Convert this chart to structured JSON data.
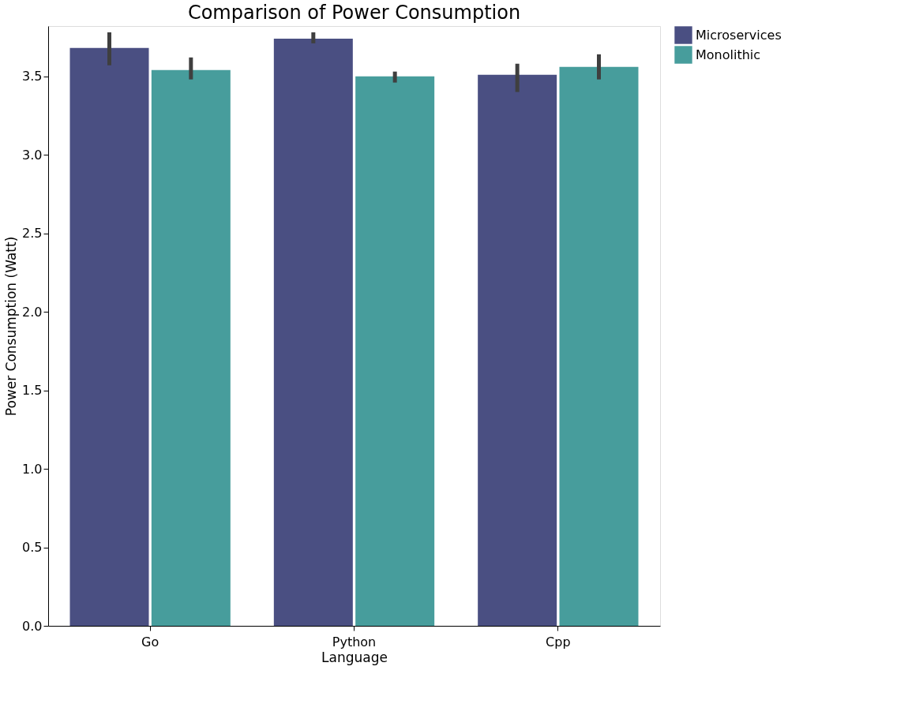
{
  "chart_data": {
    "type": "bar",
    "title": "Comparison of Power Consumption",
    "xlabel": "Language",
    "ylabel": "Power Consumption (Watt)",
    "categories": [
      "Go",
      "Python",
      "Cpp"
    ],
    "series": [
      {
        "name": "Microservices",
        "color": "#4a4f82",
        "values": [
          3.68,
          3.74,
          3.51
        ],
        "errors": [
          [
            3.57,
            3.78
          ],
          [
            3.71,
            3.78
          ],
          [
            3.4,
            3.58
          ]
        ]
      },
      {
        "name": "Monolithic",
        "color": "#479d9c",
        "values": [
          3.54,
          3.5,
          3.56
        ],
        "errors": [
          [
            3.48,
            3.62
          ],
          [
            3.46,
            3.53
          ],
          [
            3.48,
            3.64
          ]
        ]
      }
    ],
    "ylim": [
      0,
      3.82
    ],
    "yticks": [
      {
        "value": 0,
        "label": "0.0"
      },
      0.5,
      {
        "value": 1,
        "label": "1.0"
      },
      1.5,
      {
        "value": 2,
        "label": "2.0"
      },
      2.5,
      {
        "value": 3,
        "label": "3.0"
      },
      3.5
    ],
    "grid": false,
    "legend": "right"
  }
}
